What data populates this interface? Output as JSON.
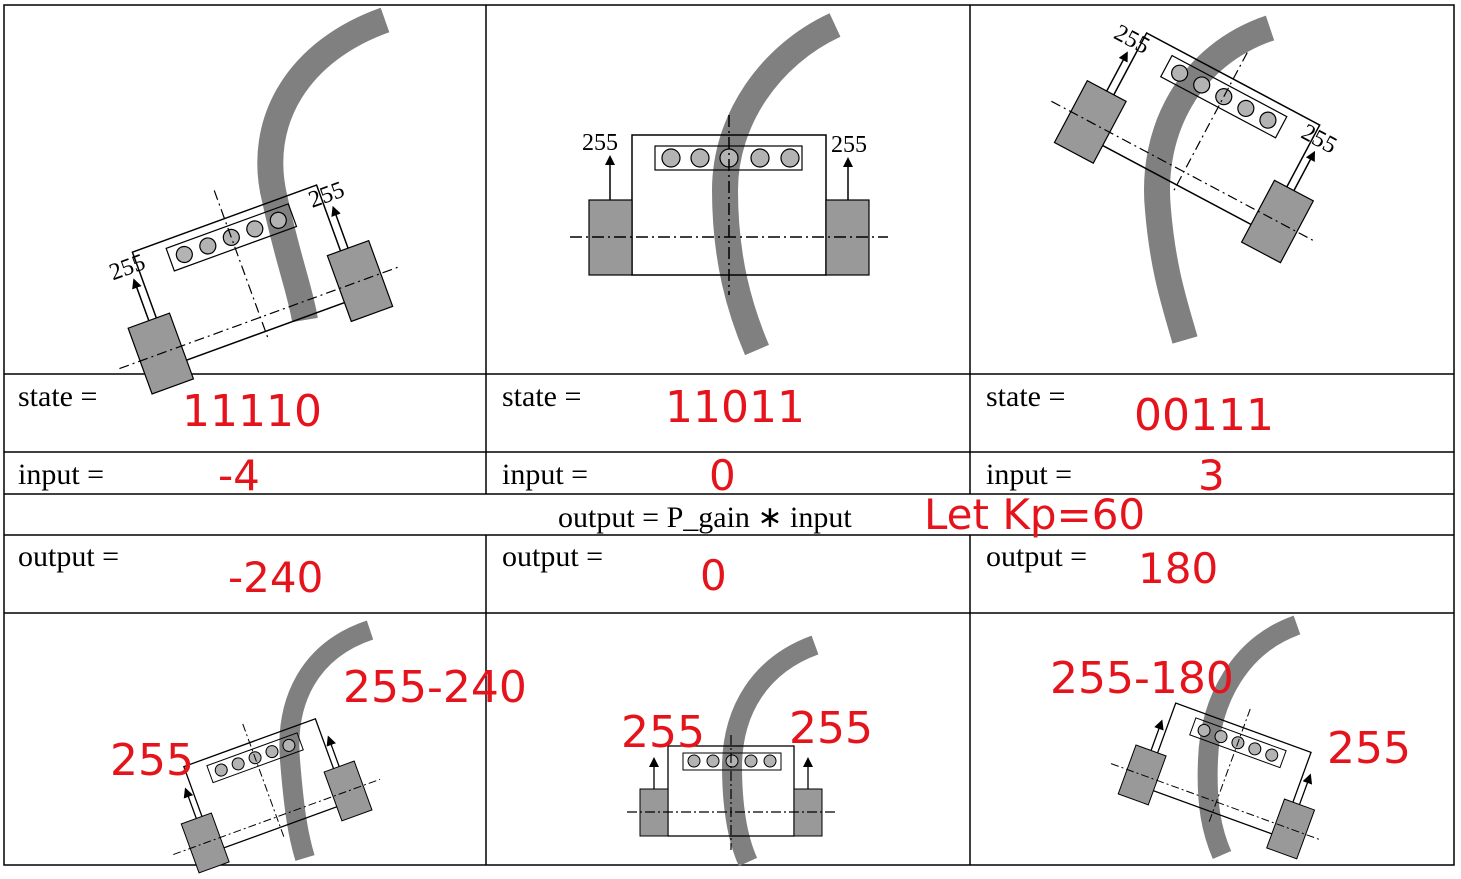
{
  "colors": {
    "annotation_red": "#e5141c",
    "line_track": "#808080",
    "motor_fill": "#999999",
    "sensor_fill": "#b3b3b3"
  },
  "top_diagrams": [
    {
      "left_motor_label": "255",
      "right_motor_label": "255"
    },
    {
      "left_motor_label": "255",
      "right_motor_label": "255"
    },
    {
      "left_motor_label": "255",
      "right_motor_label": "255"
    }
  ],
  "table": {
    "state_label": "state =",
    "input_label": "input =",
    "output_label": "output =",
    "formula": "output = P_gain ∗ input",
    "kp_note": "Let Kp=60",
    "columns": [
      {
        "state": "11110",
        "input": "-4",
        "output": "-240"
      },
      {
        "state": "11011",
        "input": "0",
        "output": "0"
      },
      {
        "state": "00111",
        "input": "3",
        "output": "180"
      }
    ]
  },
  "bottom_diagrams": [
    {
      "left_speed": "255",
      "right_speed": "255-240"
    },
    {
      "left_speed": "255",
      "right_speed": "255"
    },
    {
      "left_speed": "255-180",
      "right_speed": "255"
    }
  ]
}
